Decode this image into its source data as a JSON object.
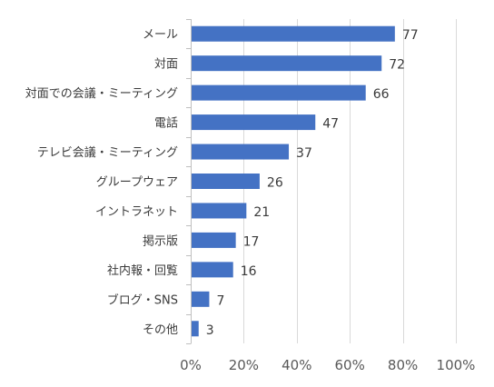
{
  "chart_data": {
    "type": "bar",
    "orientation": "horizontal",
    "categories": [
      "メール",
      "対面",
      "対面での会議・ミーティング",
      "電話",
      "テレビ会議・ミーティング",
      "グループウェア",
      "イントラネット",
      "掲示版",
      "社内報・回覧",
      "ブログ・SNS",
      "その他"
    ],
    "values": [
      77,
      72,
      66,
      47,
      37,
      26,
      21,
      17,
      16,
      7,
      3
    ],
    "value_labels": [
      "77",
      "72",
      "66",
      "47",
      "37",
      "26",
      "21",
      "17",
      "16",
      "7",
      "3"
    ],
    "x_ticks": [
      "0%",
      "20%",
      "40%",
      "60%",
      "80%",
      "100%"
    ],
    "xlim": [
      0,
      100
    ],
    "grid": true,
    "legend": "none",
    "colors": {
      "bar": "#4472c4",
      "grid": "#d9d9d9",
      "axis": "#bfbfbf"
    }
  }
}
